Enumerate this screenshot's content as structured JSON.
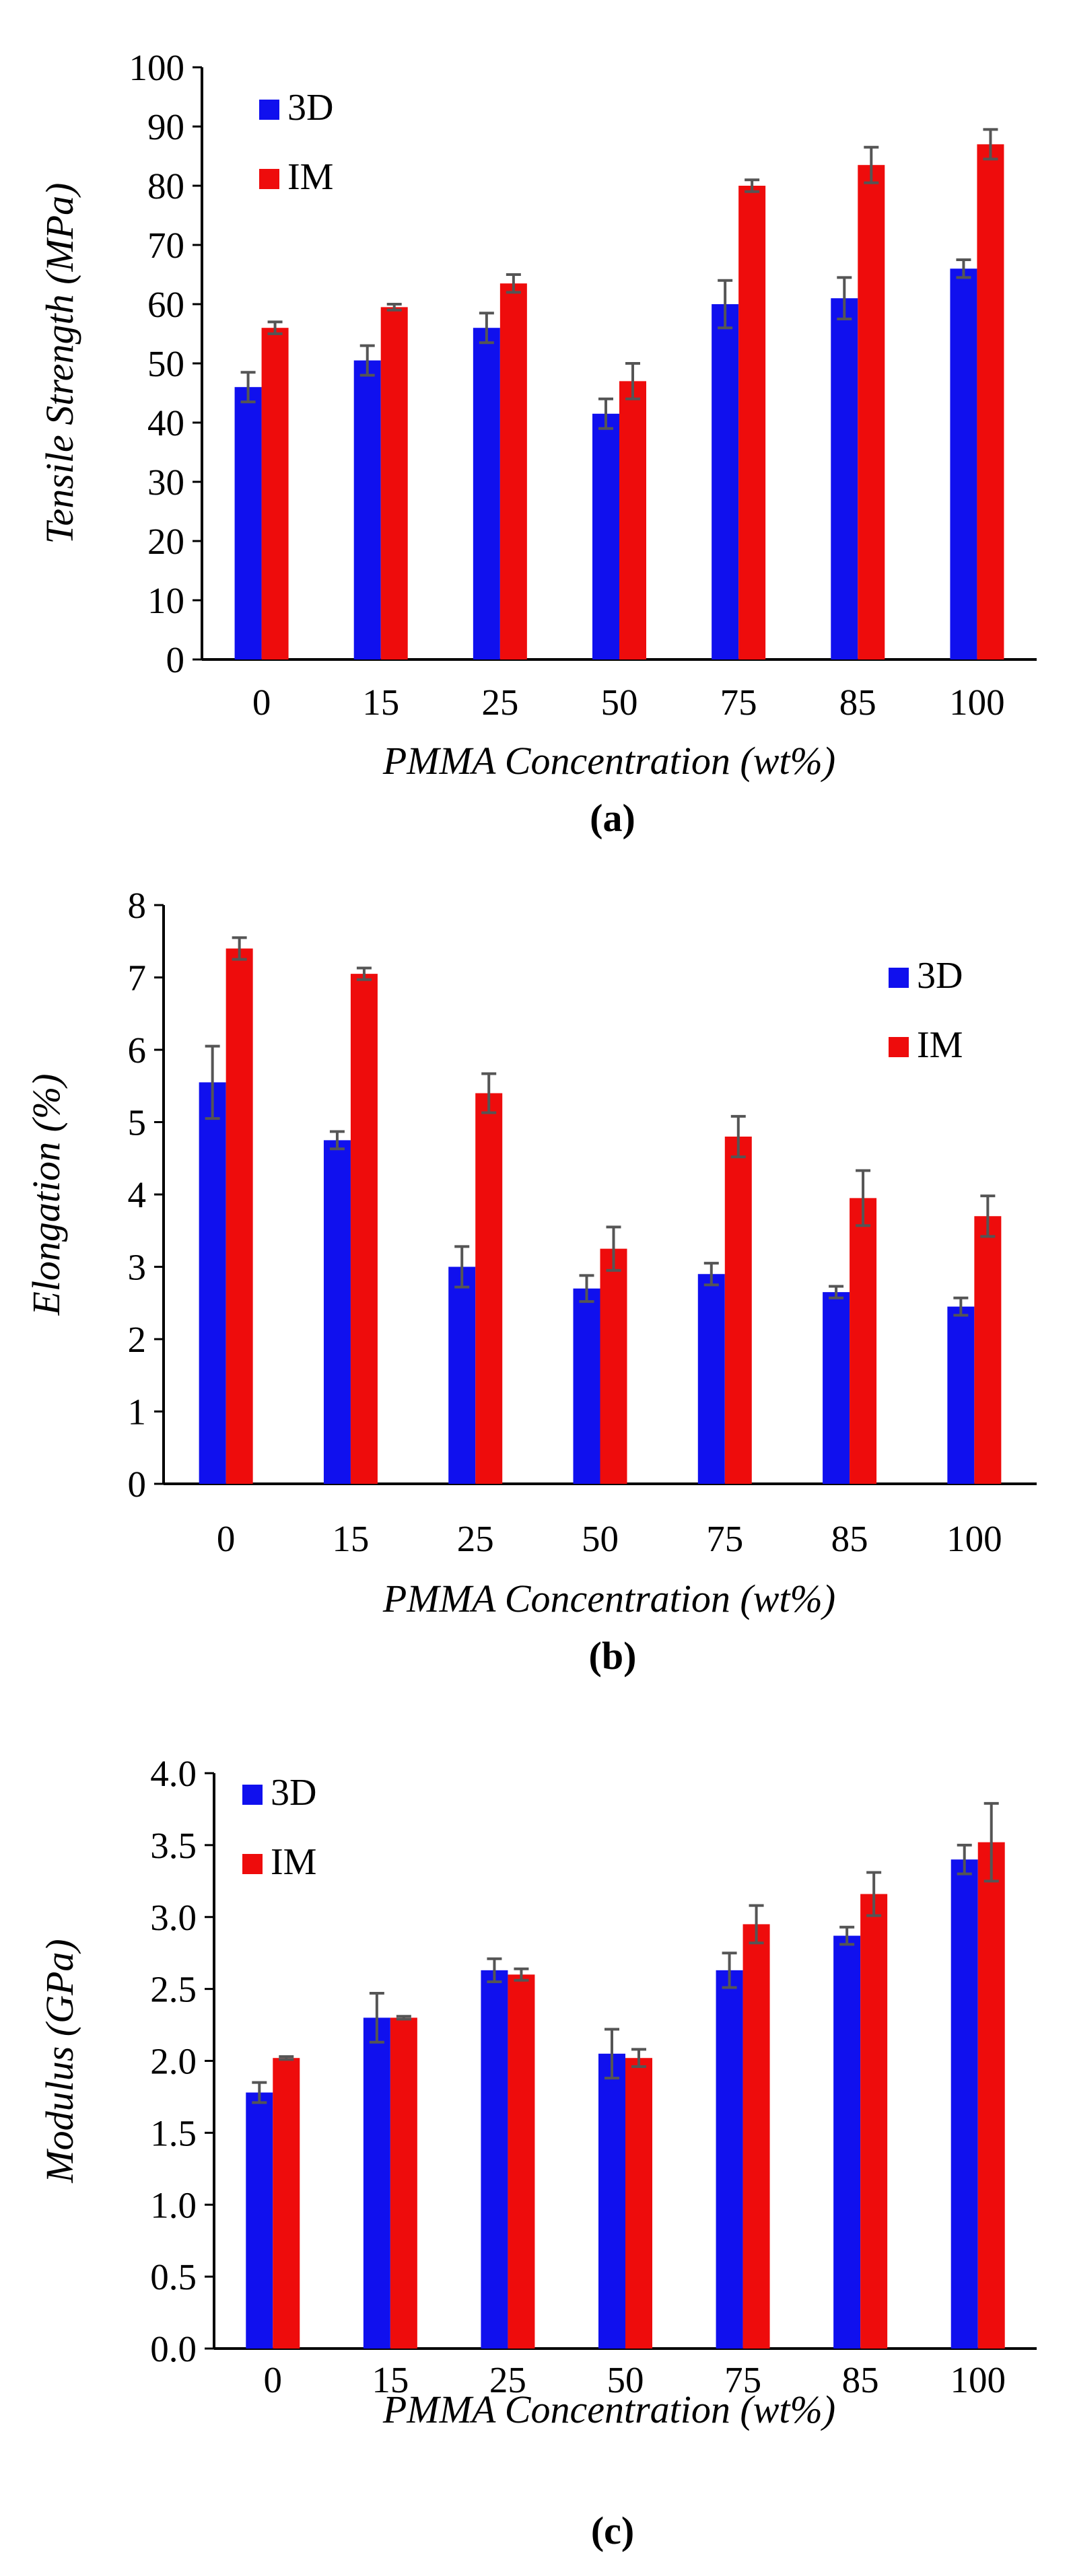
{
  "colors": {
    "3D": "#1010ee",
    "IM": "#ee0c0c",
    "errorbar": "#555555",
    "axis": "#000000"
  },
  "chart_data": [
    {
      "type": "bar",
      "caption": "(a)",
      "xlabel": "PMMA Concentration (wt%)",
      "ylabel": "Tensile Strength (MPa)",
      "ylim": [
        0,
        100
      ],
      "yticks": [
        "0",
        "10",
        "20",
        "30",
        "40",
        "50",
        "60",
        "70",
        "80",
        "90",
        "100"
      ],
      "legend_position": "top-left",
      "categories": [
        "0",
        "15",
        "25",
        "50",
        "75",
        "85",
        "100"
      ],
      "series": [
        {
          "name": "3D",
          "values": [
            46,
            50.5,
            56,
            41.5,
            60,
            61,
            66
          ],
          "errors": [
            2.5,
            2.5,
            2.5,
            2.5,
            4,
            3.5,
            1.5
          ]
        },
        {
          "name": "IM",
          "values": [
            56,
            59.5,
            63.5,
            47,
            80,
            83.5,
            87
          ],
          "errors": [
            1,
            0.5,
            1.5,
            3,
            1,
            3,
            2.5
          ]
        }
      ]
    },
    {
      "type": "bar",
      "caption": "(b)",
      "xlabel": "PMMA Concentration (wt%)",
      "ylabel": "Elongation (%)",
      "ylim": [
        0,
        8
      ],
      "yticks": [
        "0",
        "1",
        "2",
        "3",
        "4",
        "5",
        "6",
        "7",
        "8"
      ],
      "legend_position": "top-right",
      "categories": [
        "0",
        "15",
        "25",
        "50",
        "75",
        "85",
        "100"
      ],
      "series": [
        {
          "name": "3D",
          "values": [
            5.55,
            4.75,
            3.0,
            2.7,
            2.9,
            2.65,
            2.45
          ],
          "errors": [
            0.5,
            0.12,
            0.28,
            0.18,
            0.15,
            0.08,
            0.12
          ]
        },
        {
          "name": "IM",
          "values": [
            7.4,
            7.05,
            5.4,
            3.25,
            4.8,
            3.95,
            3.7
          ],
          "errors": [
            0.15,
            0.08,
            0.27,
            0.3,
            0.28,
            0.38,
            0.28
          ]
        }
      ]
    },
    {
      "type": "bar",
      "caption": "(c)",
      "xlabel": "PMMA Concentration (wt%)",
      "ylabel": "Modulus (GPa)",
      "ylim": [
        0,
        4
      ],
      "yticks": [
        "0.0",
        "0.5",
        "1.0",
        "1.5",
        "2.0",
        "2.5",
        "3.0",
        "3.5",
        "4.0"
      ],
      "legend_position": "top-left",
      "categories": [
        "0",
        "15",
        "25",
        "50",
        "75",
        "85",
        "100"
      ],
      "series": [
        {
          "name": "3D",
          "values": [
            1.78,
            2.3,
            2.63,
            2.05,
            2.63,
            2.87,
            3.4
          ],
          "errors": [
            0.07,
            0.17,
            0.08,
            0.17,
            0.12,
            0.06,
            0.1
          ]
        },
        {
          "name": "IM",
          "values": [
            2.02,
            2.3,
            2.6,
            2.02,
            2.95,
            3.16,
            3.52
          ],
          "errors": [
            0.01,
            0.01,
            0.04,
            0.06,
            0.13,
            0.15,
            0.27
          ]
        }
      ]
    }
  ]
}
